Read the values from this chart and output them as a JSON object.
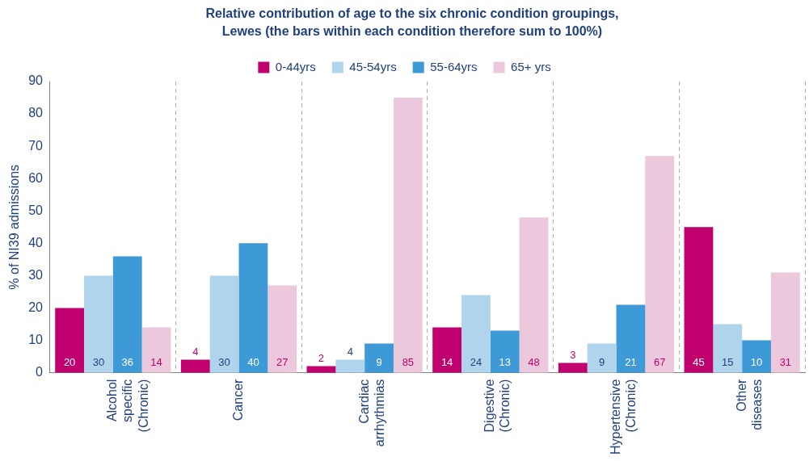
{
  "chart_data": {
    "type": "bar",
    "title": "Relative contribution of age to the six chronic condition groupings, Lewes (the bars within each condition therefore sum to 100%)",
    "ylabel": "% of NI39 admissions",
    "categories": [
      "Alcohol specific (Chronic)",
      "Cancer",
      "Cardiac arrhythmias",
      "Digestive (Chronic)",
      "Hypertensive (Chronic)",
      "Other diseases"
    ],
    "series": [
      {
        "name": "0-44yrs",
        "color": "#c0006f",
        "values": [
          20,
          4,
          2,
          14,
          3,
          45
        ]
      },
      {
        "name": "45-54yrs",
        "color": "#b0d4ec",
        "values": [
          30,
          30,
          4,
          24,
          9,
          15
        ]
      },
      {
        "name": "55-64yrs",
        "color": "#3e9ad6",
        "values": [
          36,
          40,
          9,
          13,
          21,
          10
        ]
      },
      {
        "name": "65+ yrs",
        "color": "#ebc8dc",
        "values": [
          14,
          27,
          85,
          48,
          67,
          31
        ]
      }
    ],
    "ylim": [
      0,
      90
    ],
    "yticks": [
      0,
      10,
      20,
      30,
      40,
      50,
      60,
      70,
      80,
      90
    ],
    "grid": "x",
    "legend": "top",
    "data_labels": true
  }
}
